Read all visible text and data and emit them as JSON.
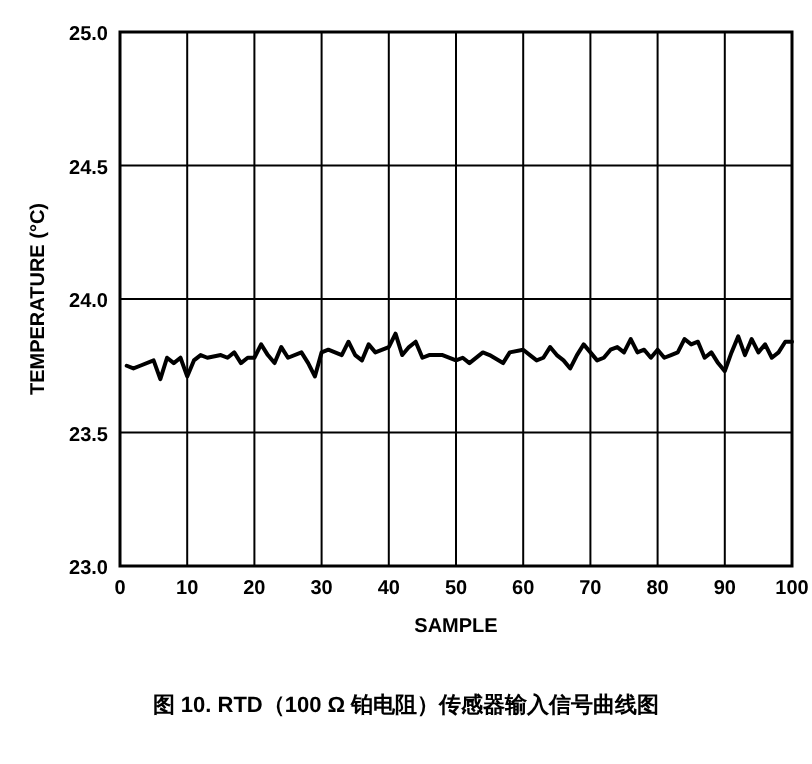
{
  "chart_data": {
    "type": "line",
    "xlabel": "SAMPLE",
    "ylabel": "TEMPERATURE (°C)",
    "annotations": [
      "图 10. RTD（100 Ω 铂电阻）传感器输入信号曲线图"
    ],
    "xlim": [
      0,
      100
    ],
    "xticks": [
      0,
      10,
      20,
      30,
      40,
      50,
      60,
      70,
      80,
      90,
      100
    ],
    "ylim": [
      23.0,
      25.0
    ],
    "yticks": [
      {
        "value": 23.0,
        "label": "23.0"
      },
      23.5,
      {
        "value": 24.0,
        "label": "24.0"
      },
      24.5,
      {
        "value": 25.0,
        "label": "25.0"
      }
    ],
    "grid": true,
    "marker": "none",
    "line_style": "solid",
    "series": [
      {
        "color": "#000000",
        "x": [
          1,
          2,
          3,
          5,
          6,
          7,
          8,
          9,
          10,
          11,
          12,
          13,
          15,
          16,
          17,
          18,
          19,
          20,
          21,
          22,
          23,
          24,
          25,
          27,
          28,
          29,
          30,
          31,
          32,
          33,
          34,
          35,
          36,
          37,
          38,
          40,
          41,
          42,
          43,
          44,
          45,
          46,
          48,
          50,
          51,
          52,
          54,
          55,
          57,
          58,
          60,
          61,
          62,
          63,
          64,
          65,
          66,
          67,
          68,
          69,
          70,
          71,
          72,
          73,
          74,
          75,
          76,
          77,
          78,
          79,
          80,
          81,
          82,
          83,
          84,
          85,
          86,
          87,
          88,
          89,
          90,
          91,
          92,
          93,
          94,
          95,
          96,
          97,
          98,
          99,
          100
        ],
        "values": [
          23.75,
          23.74,
          23.75,
          23.77,
          23.7,
          23.78,
          23.76,
          23.78,
          23.71,
          23.77,
          23.79,
          23.78,
          23.79,
          23.78,
          23.8,
          23.76,
          23.78,
          23.78,
          23.83,
          23.79,
          23.76,
          23.82,
          23.78,
          23.8,
          23.76,
          23.71,
          23.8,
          23.81,
          23.8,
          23.79,
          23.84,
          23.79,
          23.77,
          23.83,
          23.8,
          23.82,
          23.87,
          23.79,
          23.82,
          23.84,
          23.78,
          23.79,
          23.79,
          23.77,
          23.78,
          23.76,
          23.8,
          23.79,
          23.76,
          23.8,
          23.81,
          23.79,
          23.77,
          23.78,
          23.82,
          23.79,
          23.77,
          23.74,
          23.79,
          23.83,
          23.8,
          23.77,
          23.78,
          23.81,
          23.82,
          23.8,
          23.85,
          23.8,
          23.81,
          23.78,
          23.81,
          23.78,
          23.79,
          23.8,
          23.85,
          23.83,
          23.84,
          23.78,
          23.8,
          23.76,
          23.73,
          23.8,
          23.86,
          23.79,
          23.85,
          23.8,
          23.83,
          23.78,
          23.8,
          23.84,
          23.84
        ]
      }
    ]
  }
}
